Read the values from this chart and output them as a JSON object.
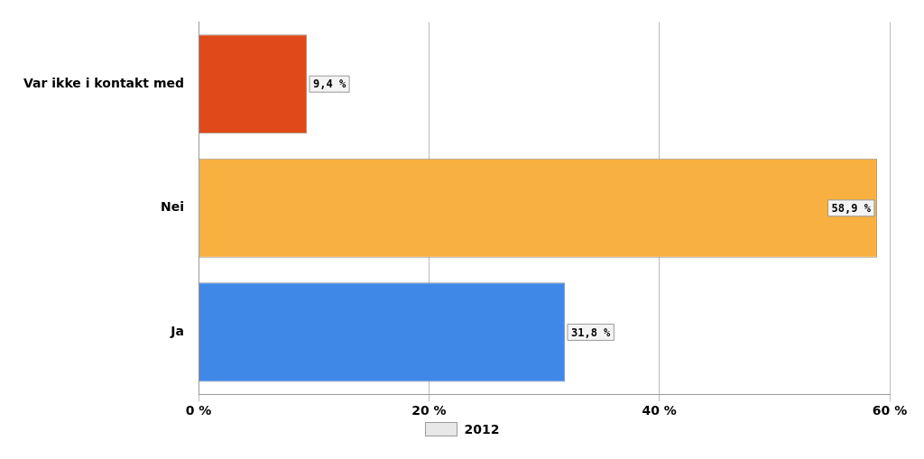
{
  "chart_data": {
    "type": "bar",
    "orientation": "horizontal",
    "categories": [
      "Var ikke i kontakt med",
      "Nei",
      "Ja"
    ],
    "series": [
      {
        "name": "2012",
        "color": "#e8e8e8",
        "colors": [
          "#e04a1a",
          "#f8b040",
          "#4088e8"
        ],
        "values": [
          9.4,
          58.9,
          31.8
        ],
        "value_labels": [
          "9,4 %",
          "58,9 %",
          "31,8 %"
        ]
      }
    ],
    "xlim": [
      0,
      60
    ],
    "xticks": [
      {
        "value": 0,
        "label": "0 %"
      },
      {
        "value": 20,
        "label": "20 %"
      },
      {
        "value": 40,
        "label": "40 %"
      },
      {
        "value": 60,
        "label": "60 %"
      }
    ],
    "grid": "x",
    "legend": "bottom"
  }
}
